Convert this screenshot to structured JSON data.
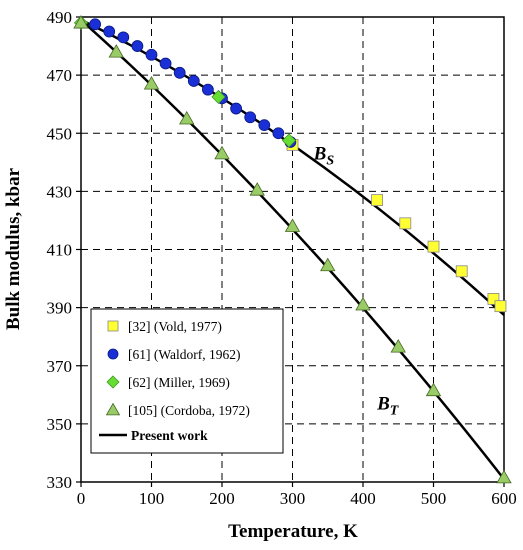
{
  "chart_data": {
    "type": "scatter",
    "title": "",
    "xlabel": "Temperature, K",
    "ylabel": "Bulk modulus, kbar",
    "xlim": [
      0,
      600
    ],
    "ylim": [
      330,
      490
    ],
    "xticks": [
      0,
      100,
      200,
      300,
      400,
      500,
      600
    ],
    "yticks": [
      330,
      350,
      370,
      390,
      410,
      430,
      450,
      470,
      490
    ],
    "x_tick_labels": [
      "0",
      "100",
      "200",
      "300",
      "400",
      "500",
      "600"
    ],
    "y_tick_labels": [
      "330",
      "350",
      "370",
      "390",
      "410",
      "430",
      "450",
      "470",
      "490"
    ],
    "grid": true,
    "legend_position": "bottom-left",
    "curve_labels": [
      {
        "main": "B",
        "sub": "S",
        "x": 330,
        "y": 441
      },
      {
        "main": "B",
        "sub": "T",
        "x": 420,
        "y": 355
      }
    ],
    "series": [
      {
        "name": "[32] (Vold, 1977)",
        "marker": "square",
        "color": "#ffff33",
        "points": [
          [
            300,
            446
          ],
          [
            420,
            427
          ],
          [
            460,
            419
          ],
          [
            500,
            411
          ],
          [
            540,
            402.5
          ],
          [
            585,
            393
          ],
          [
            595,
            390.5
          ]
        ]
      },
      {
        "name": "[61] (Waldorf, 1962)",
        "marker": "circle",
        "color": "#1a2fd6",
        "points": [
          [
            20,
            487.5
          ],
          [
            40,
            485
          ],
          [
            60,
            483
          ],
          [
            80,
            480
          ],
          [
            100,
            477
          ],
          [
            120,
            474
          ],
          [
            140,
            470.8
          ],
          [
            160,
            468
          ],
          [
            180,
            465
          ],
          [
            200,
            462
          ],
          [
            220,
            458.5
          ],
          [
            240,
            455.5
          ],
          [
            260,
            452.8
          ],
          [
            280,
            450
          ],
          [
            297,
            447
          ]
        ]
      },
      {
        "name": "[62] (Miller, 1969)",
        "marker": "diamond",
        "color": "#66dd33",
        "points": [
          [
            0,
            488
          ],
          [
            195,
            462.5
          ],
          [
            295,
            447.5
          ]
        ]
      },
      {
        "name": "[105] (Cordoba, 1972)",
        "marker": "triangle",
        "color": "#99cc66",
        "points": [
          [
            0,
            488
          ],
          [
            50,
            478
          ],
          [
            100,
            467
          ],
          [
            150,
            455
          ],
          [
            200,
            443
          ],
          [
            250,
            430.5
          ],
          [
            300,
            418
          ],
          [
            350,
            404.5
          ],
          [
            400,
            391
          ],
          [
            450,
            376.5
          ],
          [
            500,
            361.5
          ],
          [
            600,
            331.5
          ]
        ]
      }
    ],
    "lines": [
      {
        "name": "Present work",
        "color": "#000000",
        "curves": [
          [
            [
              0,
              489
            ],
            [
              300,
              446
            ],
            [
              600,
              387.5
            ]
          ],
          [
            [
              0,
              489
            ],
            [
              300,
              417
            ],
            [
              600,
              331
            ]
          ]
        ]
      }
    ]
  }
}
